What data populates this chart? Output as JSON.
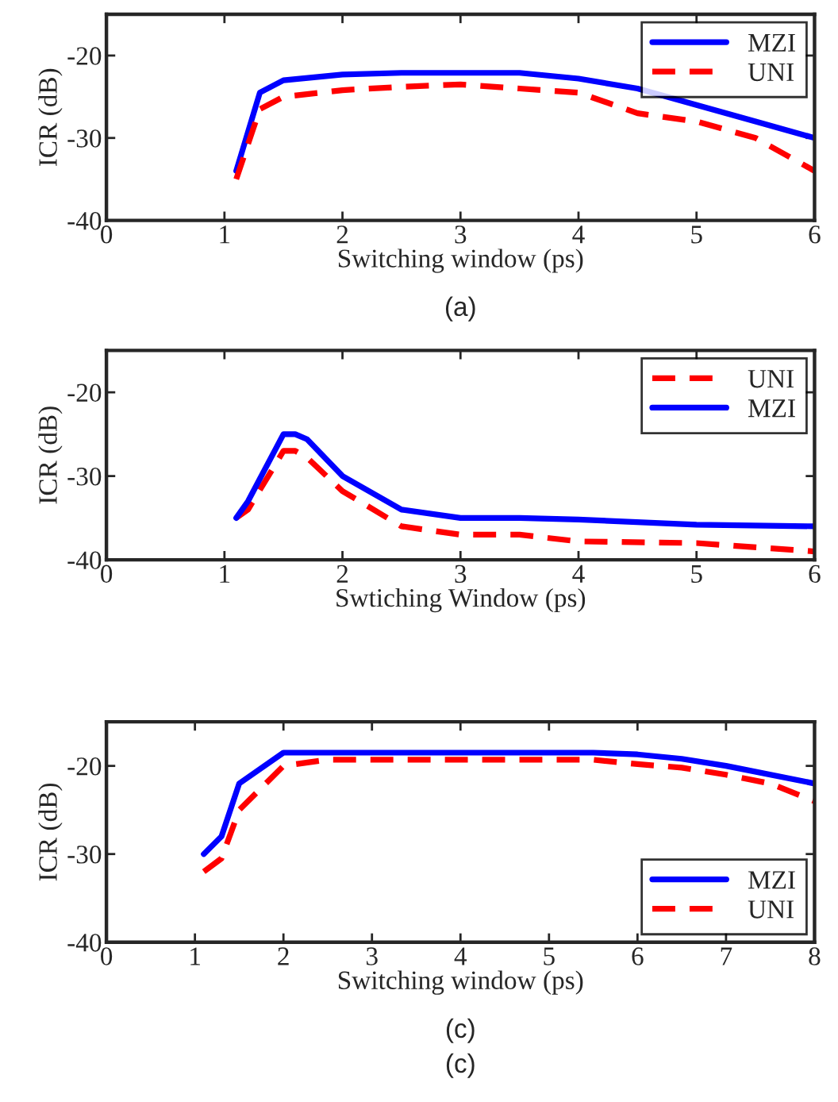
{
  "chart_data": [
    {
      "type": "line",
      "xlabel": "Switching window (ps)",
      "ylabel": "ICR (dB)",
      "xlim": [
        0,
        6
      ],
      "ylim": [
        -40,
        -15
      ],
      "xticks": [
        0,
        1,
        2,
        3,
        4,
        5,
        6
      ],
      "yticks": [
        -40,
        -30,
        -20
      ],
      "grid": false,
      "legend": "top right",
      "annotations": [
        "(a)"
      ],
      "series": [
        {
          "name": "MZI",
          "color": "#0000ff",
          "line_style": "solid",
          "x": [
            1.1,
            1.3,
            1.5,
            2,
            2.5,
            3,
            3.5,
            4,
            4.5,
            5,
            5.5,
            6
          ],
          "values": [
            -34,
            -24.5,
            -23,
            -22.3,
            -22.1,
            -22.1,
            -22.1,
            -22.8,
            -24,
            -26,
            -28,
            -30
          ]
        },
        {
          "name": "UNI",
          "color": "#ff0000",
          "line_style": "dashed",
          "x": [
            1.1,
            1.3,
            1.5,
            2,
            2.5,
            3,
            3.5,
            4,
            4.5,
            5,
            5.5,
            6
          ],
          "values": [
            -35,
            -26.5,
            -25,
            -24.2,
            -23.8,
            -23.5,
            -24,
            -24.5,
            -27,
            -28,
            -30,
            -34
          ]
        }
      ]
    },
    {
      "type": "line",
      "xlabel": "Swtiching Window (ps)",
      "ylabel": "ICR (dB)",
      "xlim": [
        0,
        6
      ],
      "ylim": [
        -40,
        -15
      ],
      "xticks": [
        0,
        1,
        2,
        3,
        4,
        5,
        6
      ],
      "yticks": [
        -40,
        -30,
        -20
      ],
      "grid": false,
      "legend": "top right",
      "series": [
        {
          "name": "UNI",
          "color": "#ff0000",
          "line_style": "dashed",
          "x": [
            1.1,
            1.2,
            1.5,
            1.6,
            1.7,
            2,
            2.5,
            3,
            3.5,
            4,
            5,
            6
          ],
          "values": [
            -35,
            -34,
            -27,
            -27,
            -27.8,
            -31.8,
            -36,
            -37,
            -37,
            -37.8,
            -38,
            -39
          ]
        },
        {
          "name": "MZI",
          "color": "#0000ff",
          "line_style": "solid",
          "x": [
            1.1,
            1.2,
            1.5,
            1.6,
            1.7,
            2,
            2.5,
            3,
            3.5,
            4,
            5,
            6
          ],
          "values": [
            -35,
            -33,
            -25,
            -25,
            -25.6,
            -30,
            -34,
            -35,
            -35,
            -35.2,
            -35.8,
            -36
          ]
        }
      ]
    },
    {
      "type": "line",
      "xlabel": "Switching window (ps)",
      "ylabel": "ICR (dB)",
      "xlim": [
        0,
        8
      ],
      "ylim": [
        -40,
        -15
      ],
      "xticks": [
        0,
        1,
        2,
        3,
        4,
        5,
        6,
        7,
        8
      ],
      "yticks": [
        -40,
        -30,
        -20
      ],
      "grid": false,
      "legend": "bottom right",
      "annotations": [
        "(c)",
        "(c)"
      ],
      "series": [
        {
          "name": "MZI",
          "color": "#0000ff",
          "line_style": "solid",
          "x": [
            1.1,
            1.3,
            1.5,
            2,
            3,
            4,
            5,
            5.5,
            6,
            6.5,
            7,
            8
          ],
          "values": [
            -30,
            -28,
            -22,
            -18.5,
            -18.5,
            -18.5,
            -18.5,
            -18.5,
            -18.7,
            -19.2,
            -20,
            -22
          ]
        },
        {
          "name": "UNI",
          "color": "#ff0000",
          "line_style": "dashed",
          "x": [
            1.1,
            1.3,
            1.5,
            2,
            2.5,
            5.5,
            6,
            6.5,
            7,
            7.5,
            8
          ],
          "values": [
            -32,
            -30.5,
            -25,
            -20,
            -19.3,
            -19.3,
            -19.8,
            -20.2,
            -21,
            -22,
            -24
          ]
        }
      ]
    }
  ]
}
